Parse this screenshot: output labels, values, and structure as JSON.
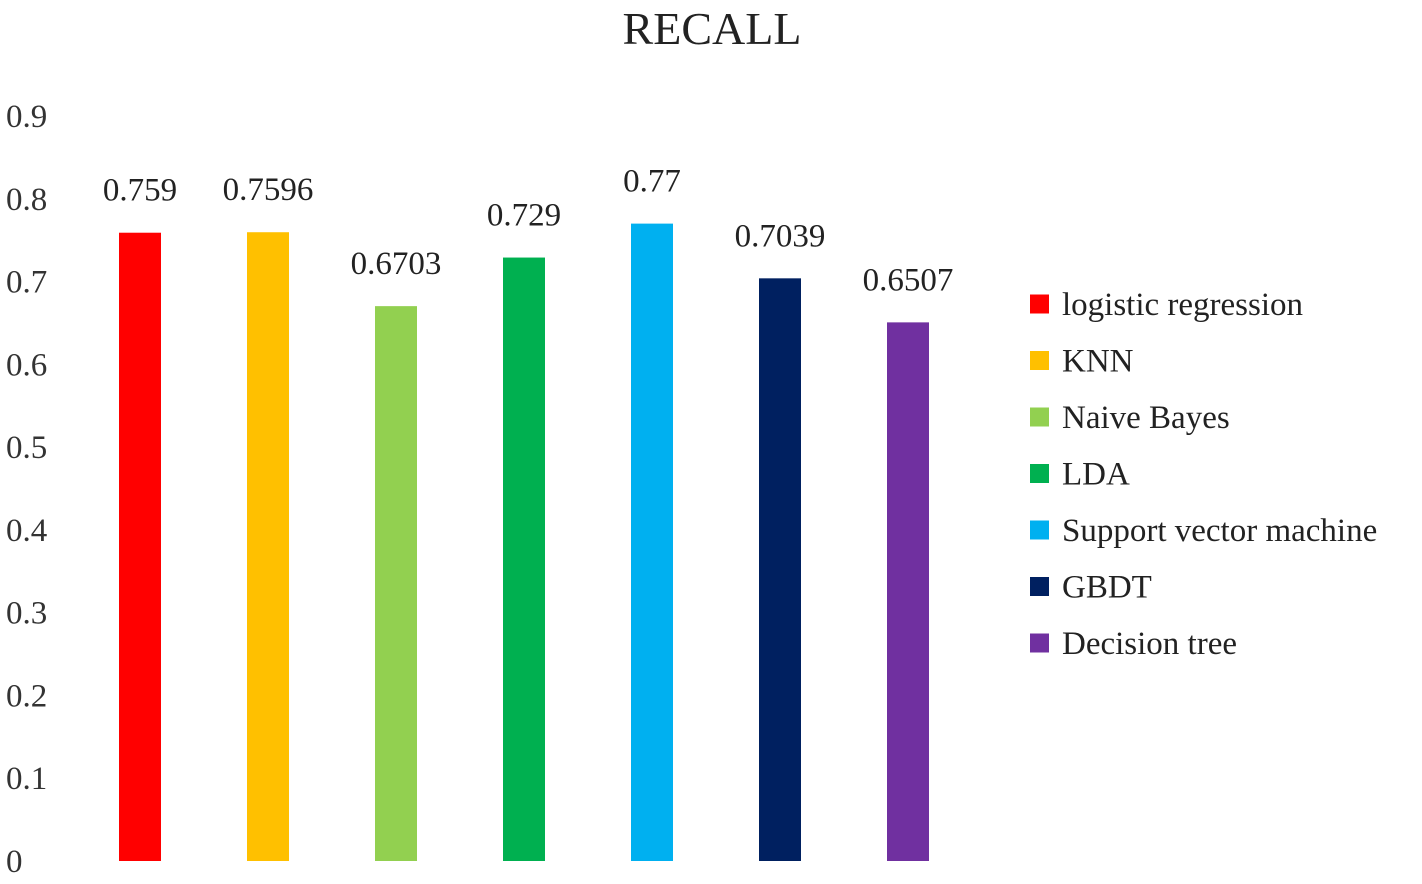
{
  "chart_data": {
    "type": "bar",
    "title": "RECALL",
    "xlabel": "",
    "ylabel": "",
    "ylim": [
      0,
      0.9
    ],
    "yticks": [
      "0",
      "0.1",
      "0.2",
      "0.3",
      "0.4",
      "0.5",
      "0.6",
      "0.7",
      "0.8",
      "0.9"
    ],
    "grid": false,
    "legend_position": "right",
    "series": [
      {
        "name": "logistic regression",
        "value": 0.759,
        "label": "0.759",
        "color": "#ff0000"
      },
      {
        "name": "KNN",
        "value": 0.7596,
        "label": "0.7596",
        "color": "#ffc000"
      },
      {
        "name": "Naive Bayes",
        "value": 0.6703,
        "label": "0.6703",
        "color": "#92d050"
      },
      {
        "name": "LDA",
        "value": 0.729,
        "label": "0.729",
        "color": "#00b050"
      },
      {
        "name": "Support vector machine",
        "value": 0.77,
        "label": "0.77",
        "color": "#00b0f0"
      },
      {
        "name": "GBDT",
        "value": 0.7039,
        "label": "0.7039",
        "color": "#002060"
      },
      {
        "name": "Decision tree",
        "value": 0.6507,
        "label": "0.6507",
        "color": "#7030a0"
      }
    ]
  }
}
